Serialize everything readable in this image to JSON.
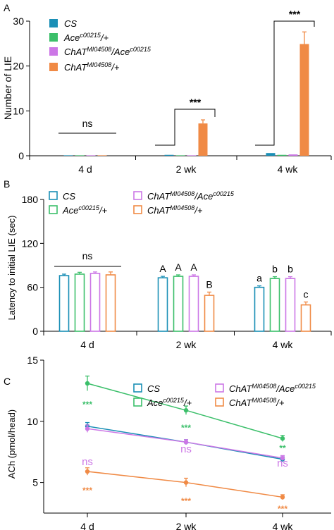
{
  "chart_data": [
    {
      "panel": "A",
      "type": "bar",
      "ylabel": "Number of LIE",
      "ylim": [
        0,
        30
      ],
      "yticks": [
        "0",
        "10",
        "20",
        "30"
      ],
      "categories": [
        "4 d",
        "2 wk",
        "4 wk"
      ],
      "legend": [
        {
          "main": "CS",
          "sup": "",
          "tail": ""
        },
        {
          "main": "Ace",
          "sup": "c00215",
          "tail": "/+"
        },
        {
          "main": "ChAT",
          "sup": "MI04508",
          "tail": "/Ace",
          "sup2": "c00215"
        },
        {
          "main": "ChAT",
          "sup": "MI04508",
          "tail": "/+"
        }
      ],
      "series": [
        {
          "values": [
            0.1,
            0.2,
            0.6
          ],
          "errors": [
            0.05,
            0.05,
            0.1
          ],
          "color": "#1a8fb6"
        },
        {
          "values": [
            0.1,
            0.1,
            0.2
          ],
          "errors": [
            0.05,
            0.05,
            0.05
          ],
          "color": "#3bbf6a"
        },
        {
          "values": [
            0.1,
            0.1,
            0.3
          ],
          "errors": [
            0.05,
            0.05,
            0.05
          ],
          "color": "#cc77e6"
        },
        {
          "values": [
            0.1,
            7.2,
            24.9
          ],
          "errors": [
            0.05,
            0.8,
            2.7
          ],
          "color": "#f08a45"
        }
      ],
      "annotations": [
        "ns",
        "***",
        "***"
      ]
    },
    {
      "panel": "B",
      "type": "bar",
      "ylabel": "Latency to initial LIE (sec)",
      "ylim": [
        0,
        180
      ],
      "yticks": [
        "0",
        "60",
        "120",
        "180"
      ],
      "categories": [
        "4 d",
        "2 wk",
        "4 wk"
      ],
      "legend": [
        {
          "main": "CS",
          "sup": "",
          "tail": ""
        },
        {
          "main": "Ace",
          "sup": "c00215",
          "tail": "/+"
        },
        {
          "main": "ChAT",
          "sup": "MI04508",
          "tail": "/Ace",
          "sup2": "c00215"
        },
        {
          "main": "ChAT",
          "sup": "MI04508",
          "tail": "/+"
        }
      ],
      "series": [
        {
          "values": [
            76,
            73,
            60
          ],
          "errors": [
            2,
            2,
            2
          ],
          "color": "#1a8fb6"
        },
        {
          "values": [
            78,
            75,
            72
          ],
          "errors": [
            2.5,
            2,
            2.5
          ],
          "color": "#3bbf6a"
        },
        {
          "values": [
            79,
            75,
            72
          ],
          "errors": [
            2,
            2,
            2.5
          ],
          "color": "#cc77e6"
        },
        {
          "values": [
            77,
            49,
            36
          ],
          "errors": [
            4,
            4.5,
            4
          ],
          "color": "#f08a45"
        }
      ],
      "annotations": [
        "ns",
        "A",
        "A",
        "A",
        "B",
        "a",
        "b",
        "b",
        "c"
      ]
    },
    {
      "panel": "C",
      "type": "line",
      "ylabel": "ACh (pmol/head)",
      "ylim": [
        2.5,
        15
      ],
      "yticks": [
        "5",
        "10",
        "15"
      ],
      "categories": [
        "4 d",
        "2 wk",
        "4 wk"
      ],
      "legend": [
        {
          "main": "CS",
          "sup": "",
          "tail": ""
        },
        {
          "main": "Ace",
          "sup": "c00215",
          "tail": "/+"
        },
        {
          "main": "ChAT",
          "sup": "MI04508",
          "tail": "/Ace",
          "sup2": "c00215"
        },
        {
          "main": "ChAT",
          "sup": "MI04508",
          "tail": "/+"
        }
      ],
      "series": [
        {
          "values": [
            9.6,
            8.3,
            6.9
          ],
          "errors": [
            0.3,
            0.2,
            0.2
          ],
          "color": "#1a8fb6"
        },
        {
          "values": [
            13.1,
            10.9,
            8.6
          ],
          "errors": [
            0.6,
            0.35,
            0.25
          ],
          "color": "#3bbf6a"
        },
        {
          "values": [
            9.4,
            8.3,
            7.0
          ],
          "errors": [
            0.3,
            0.2,
            0.2
          ],
          "color": "#cc77e6"
        },
        {
          "values": [
            5.9,
            5.0,
            3.8
          ],
          "errors": [
            0.3,
            0.35,
            0.2
          ],
          "color": "#f08a45"
        }
      ],
      "annotations": [
        "***",
        "***",
        "**",
        "ns",
        "ns",
        "ns",
        "***",
        "***",
        "***"
      ]
    }
  ]
}
